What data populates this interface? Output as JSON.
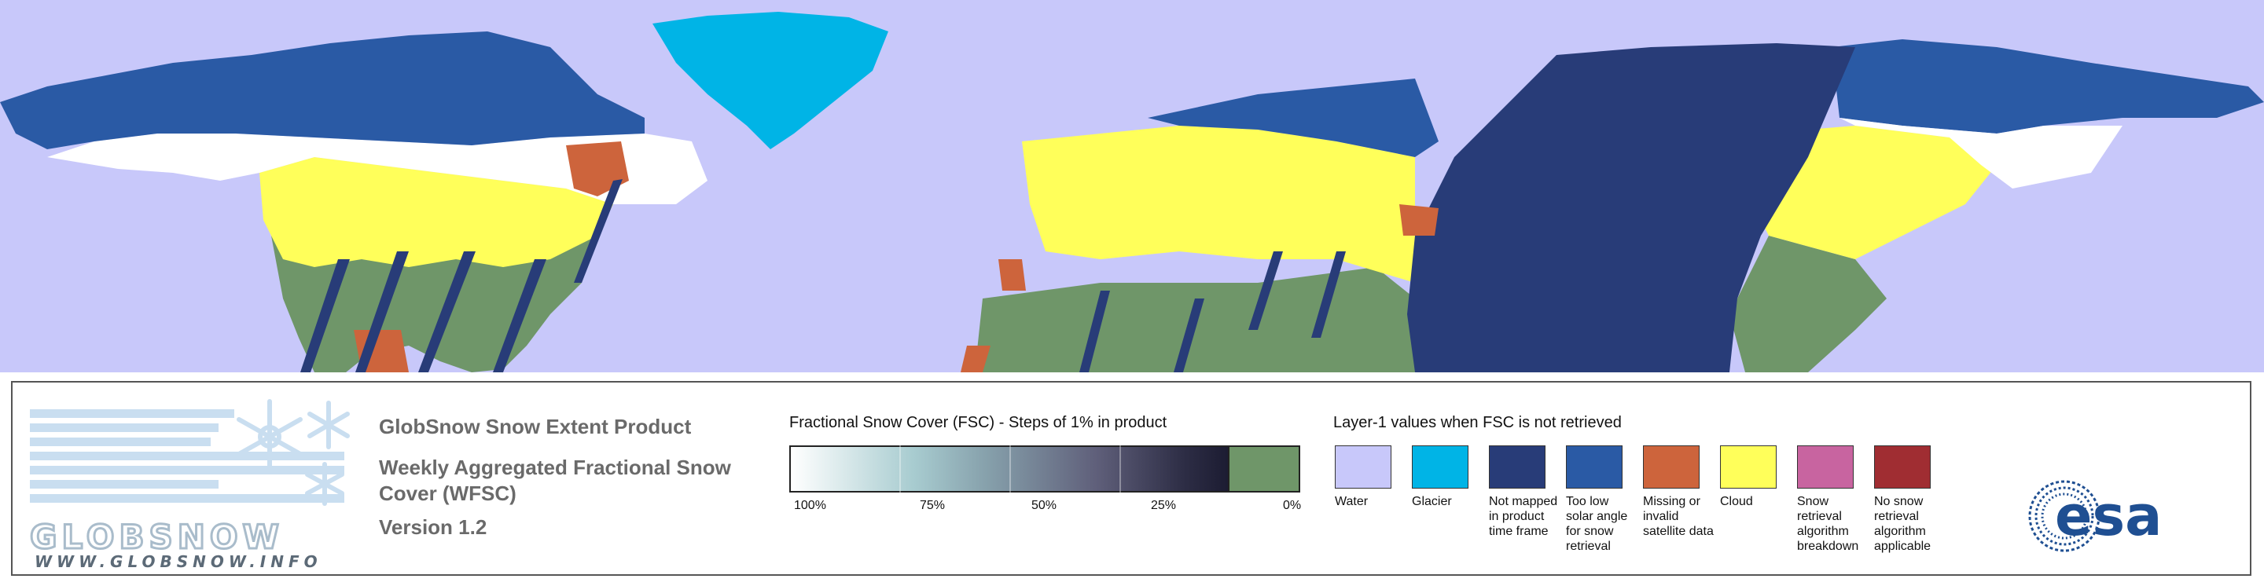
{
  "legend": {
    "logo": {
      "wordmark": "GLOBSNOW",
      "url": "WWW.GLOBSNOW.INFO"
    },
    "product_title": "GlobSnow Snow Extent Product",
    "product_subtitle": "Weekly Aggregated Fractional Snow Cover (WFSC)",
    "version": "Version 1.2",
    "fsc": {
      "title": "Fractional Snow Cover (FSC) - Steps of 1% in product",
      "ticks": [
        "100%",
        "75%",
        "50%",
        "25%",
        "0%"
      ]
    },
    "layer1": {
      "title": "Layer-1 values when FSC is not retrieved",
      "items": [
        {
          "label": "Water",
          "color": "#c8c8fa"
        },
        {
          "label": "Glacier",
          "color": "#00b4e6"
        },
        {
          "label": "Not mapped in product time frame",
          "color": "#283c78"
        },
        {
          "label": "Too low solar angle for snow retrieval",
          "color": "#2a5aa5"
        },
        {
          "label": "Missing or invalid satellite data",
          "color": "#cd643c"
        },
        {
          "label": "Cloud",
          "color": "#ffff5a"
        },
        {
          "label": "Snow retrieval algorithm breakdown",
          "color": "#c864a0"
        },
        {
          "label": "No snow retrieval algorithm applicable",
          "color": "#a02d32"
        }
      ]
    },
    "esa_logo": "esa"
  },
  "map_colors": {
    "water": "#c8c8fa",
    "glacier": "#00b4e6",
    "not_mapped": "#283c78",
    "low_solar": "#2a5aa5",
    "missing": "#cd643c",
    "cloud": "#ffff5a",
    "snow_free": "#6f9669",
    "snow": "#ffffff"
  }
}
